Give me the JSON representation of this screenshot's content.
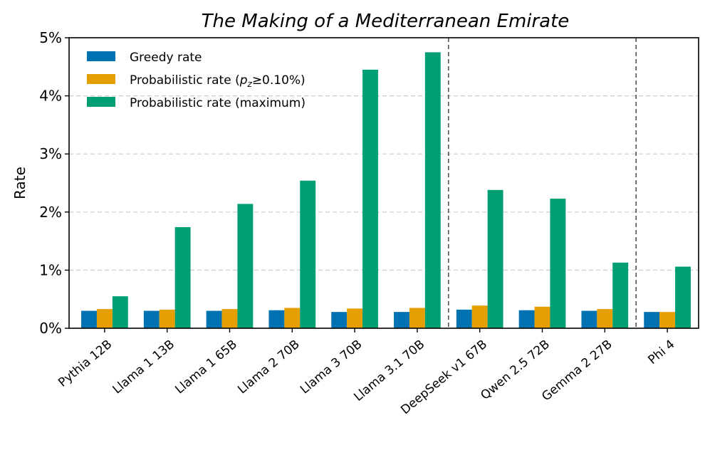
{
  "chart_data": {
    "type": "bar",
    "title": "The Making of a Mediterranean Emirate",
    "xlabel": "",
    "ylabel": "Rate",
    "ylim": [
      0,
      5
    ],
    "yticks": [
      0,
      1,
      2,
      3,
      4,
      5
    ],
    "ytick_labels": [
      "0%",
      "1%",
      "2%",
      "3%",
      "4%",
      "5%"
    ],
    "grid": "horizontal dashed",
    "legend_position": "top-left",
    "categories": [
      "Pythia 12B",
      "Llama 1 13B",
      "Llama 1 65B",
      "Llama 2 70B",
      "Llama 3 70B",
      "Llama 3.1 70B",
      "DeepSeek v1 67B",
      "Qwen 2.5 72B",
      "Gemma 2 27B",
      "Phi 4"
    ],
    "group_separators_after": [
      "Llama 3.1 70B",
      "Gemma 2 27B"
    ],
    "series": [
      {
        "name": "Greedy rate",
        "color": "#0072B2",
        "values": [
          0.3,
          0.3,
          0.3,
          0.31,
          0.28,
          0.28,
          0.32,
          0.31,
          0.3,
          0.28
        ]
      },
      {
        "name_prefix": "Probabilistic rate (",
        "name_math": "p",
        "name_sub": "z",
        "name_suffix": "≥0.10%)",
        "color": "#E69F00",
        "values": [
          0.33,
          0.32,
          0.33,
          0.35,
          0.34,
          0.35,
          0.39,
          0.37,
          0.33,
          0.28
        ]
      },
      {
        "name": "Probabilistic rate (maximum)",
        "color": "#009E73",
        "values": [
          0.55,
          1.74,
          2.14,
          2.54,
          4.45,
          4.75,
          2.38,
          2.23,
          1.13,
          1.06
        ]
      }
    ]
  }
}
